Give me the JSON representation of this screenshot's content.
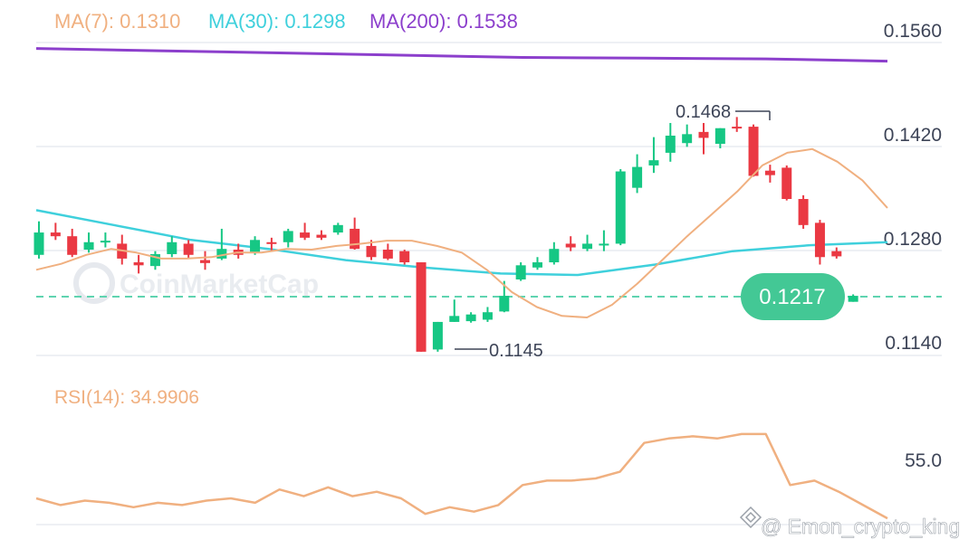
{
  "legend": {
    "ma7": {
      "label": "MA(7): 0.1310",
      "color": "#f0b080"
    },
    "ma30": {
      "label": "MA(30): 0.1298",
      "color": "#3fd0dc"
    },
    "ma200": {
      "label": "MA(200): 0.1538",
      "color": "#8c3fcc"
    }
  },
  "colors": {
    "up": "#16c784",
    "down": "#ea3943",
    "grid": "#eef0f4",
    "dash": "#5fd4b0",
    "badge": "#43c895",
    "rsi": "#f0b080"
  },
  "price_axis": {
    "ticks": [
      "0.1560",
      "0.1420",
      "0.1280",
      "0.1140"
    ]
  },
  "current_price": "0.1217",
  "high_label": "0.1468",
  "low_label": "0.1145",
  "watermark": "CoinMarketCap",
  "rsi": {
    "label": "RSI(14): 34.9906",
    "tick": "55.0"
  },
  "footer_watermark": "@ Emon_crypto_king",
  "chart_data": {
    "type": "candlestick",
    "ylim": [
      0.1135,
      0.1565
    ],
    "candles": [
      [
        0.1275,
        0.1305,
        0.132,
        0.127
      ],
      [
        0.1305,
        0.13,
        0.1318,
        0.1295
      ],
      [
        0.13,
        0.1275,
        0.131,
        0.1272
      ],
      [
        0.1282,
        0.1292,
        0.1305,
        0.1278
      ],
      [
        0.1292,
        0.1294,
        0.1305,
        0.1285
      ],
      [
        0.129,
        0.127,
        0.1302,
        0.1262
      ],
      [
        0.1265,
        0.1261,
        0.1275,
        0.125
      ],
      [
        0.126,
        0.1276,
        0.128,
        0.1255
      ],
      [
        0.1276,
        0.1292,
        0.13,
        0.1272
      ],
      [
        0.129,
        0.1275,
        0.1295,
        0.127
      ],
      [
        0.1268,
        0.1264,
        0.128,
        0.1255
      ],
      [
        0.127,
        0.1283,
        0.131,
        0.1268
      ],
      [
        0.1282,
        0.1275,
        0.129,
        0.127
      ],
      [
        0.1278,
        0.1295,
        0.13,
        0.1275
      ],
      [
        0.1292,
        0.129,
        0.1298,
        0.128
      ],
      [
        0.1292,
        0.1307,
        0.131,
        0.1285
      ],
      [
        0.1305,
        0.1298,
        0.1318,
        0.1295
      ],
      [
        0.1302,
        0.1298,
        0.1308,
        0.1295
      ],
      [
        0.1305,
        0.1315,
        0.1318,
        0.1302
      ],
      [
        0.131,
        0.1283,
        0.1325,
        0.1282
      ],
      [
        0.1287,
        0.1272,
        0.1295,
        0.1268
      ],
      [
        0.1282,
        0.127,
        0.129,
        0.1268
      ],
      [
        0.128,
        0.1265,
        0.1282,
        0.1262
      ],
      [
        0.1265,
        0.1145,
        0.1265,
        0.1145
      ],
      [
        0.1148,
        0.1185,
        0.1185,
        0.1145
      ],
      [
        0.1185,
        0.1193,
        0.1215,
        0.1185
      ],
      [
        0.1186,
        0.1195,
        0.1198,
        0.1184
      ],
      [
        0.1188,
        0.1198,
        0.1205,
        0.1185
      ],
      [
        0.1199,
        0.122,
        0.124,
        0.1198
      ],
      [
        0.1242,
        0.1261,
        0.1265,
        0.124
      ],
      [
        0.1258,
        0.1265,
        0.1272,
        0.1255
      ],
      [
        0.1265,
        0.1283,
        0.1292,
        0.1262
      ],
      [
        0.129,
        0.1285,
        0.13,
        0.128
      ],
      [
        0.1283,
        0.129,
        0.1302,
        0.128
      ],
      [
        0.1288,
        0.129,
        0.1308,
        0.128
      ],
      [
        0.129,
        0.1387,
        0.139,
        0.1288
      ],
      [
        0.1365,
        0.1393,
        0.141,
        0.1358
      ],
      [
        0.1395,
        0.1402,
        0.1433,
        0.1385
      ],
      [
        0.1412,
        0.1435,
        0.1452,
        0.14
      ],
      [
        0.1425,
        0.1437,
        0.145,
        0.142
      ],
      [
        0.144,
        0.1432,
        0.1452,
        0.141
      ],
      [
        0.1424,
        0.1445,
        0.1445,
        0.1418
      ],
      [
        0.1447,
        0.1445,
        0.146,
        0.144
      ],
      [
        0.1447,
        0.1381,
        0.145,
        0.138
      ],
      [
        0.1388,
        0.1382,
        0.1396,
        0.1372
      ],
      [
        0.1392,
        0.135,
        0.1395,
        0.1348
      ],
      [
        0.135,
        0.1315,
        0.1355,
        0.131
      ],
      [
        0.1318,
        0.1272,
        0.1322,
        0.1262
      ],
      [
        0.128,
        0.1273,
        0.1285,
        0.127
      ],
      [
        0.1212,
        0.122,
        0.1222,
        0.1212
      ]
    ],
    "ma7": [
      0.1255,
      0.1263,
      0.1275,
      0.1283,
      0.1278,
      0.127,
      0.127,
      0.1272,
      0.1278,
      0.1278,
      0.1283,
      0.1282,
      0.1287,
      0.129,
      0.1294,
      0.1294,
      0.1287,
      0.1278,
      0.1255,
      0.1225,
      0.1205,
      0.1193,
      0.1191,
      0.1208,
      0.1236,
      0.1268,
      0.13,
      0.133,
      0.136,
      0.1395,
      0.1412,
      0.1417,
      0.14,
      0.1375,
      0.1338
    ],
    "ma30": [
      0.1335,
      0.1315,
      0.1295,
      0.1283,
      0.1268,
      0.1258,
      0.125,
      0.1248,
      0.1262,
      0.128,
      0.1288,
      0.1292
    ],
    "ma200": [
      0.1552,
      0.1549,
      0.1546,
      0.1543,
      0.154,
      0.1539,
      0.1538,
      0.1535
    ],
    "rsi": [
      51,
      48,
      50,
      49,
      47,
      49,
      48,
      50,
      51,
      49,
      55,
      52,
      56,
      52,
      54,
      51,
      44,
      47,
      45,
      48,
      57,
      59,
      59,
      60,
      63,
      76,
      78,
      79,
      78,
      80,
      80,
      57,
      59,
      54,
      48,
      42
    ]
  }
}
